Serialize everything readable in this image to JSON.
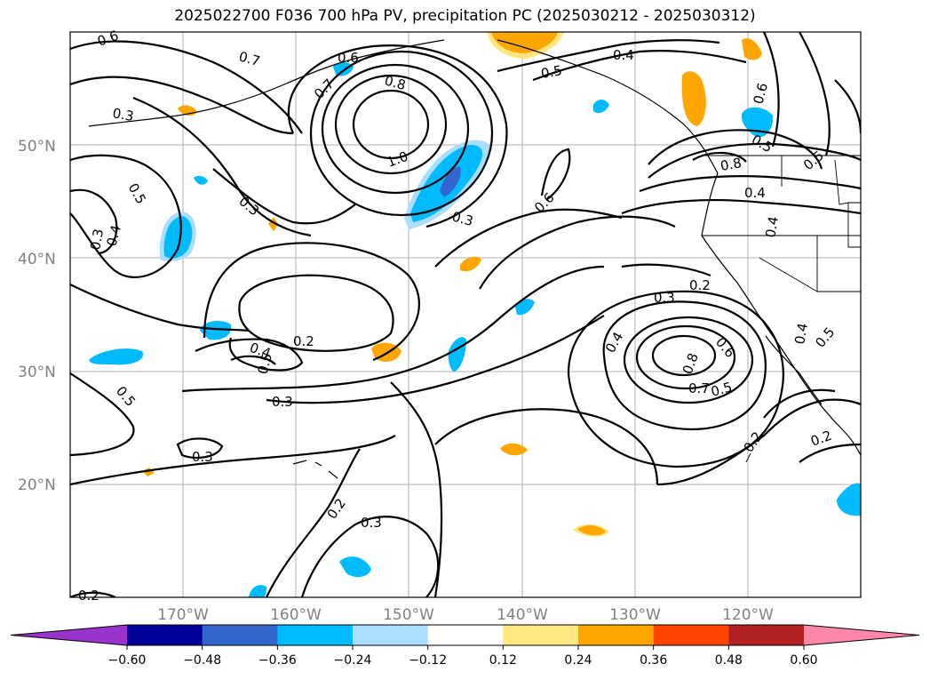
{
  "title": "2025022700 F036 700 hPa PV, precipitation PC (2025030212 - 2025030312)",
  "lat_labels": [
    "50°N",
    "40°N",
    "30°N",
    "20°N"
  ],
  "lon_labels": [
    "170°W",
    "160°W",
    "150°W",
    "140°W",
    "130°W",
    "120°W"
  ],
  "colorbar": {
    "ticks": [
      "−0.60",
      "−0.48",
      "−0.36",
      "−0.24",
      "−0.12",
      "0.12",
      "0.24",
      "0.36",
      "0.48",
      "0.60"
    ],
    "colors": [
      "#9933cc",
      "#000099",
      "#3366cc",
      "#00bbff",
      "#aaddff",
      "#ffffff",
      "#ffe680",
      "#ffa500",
      "#ff4500",
      "#b22222",
      "#ff88aa"
    ]
  },
  "contour_labels": [
    "0.6",
    "0.7",
    "0.6",
    "0.7",
    "0.8",
    "0.5",
    "0.4",
    "0.6",
    "0.3",
    "1.0",
    "0.3",
    "0.5",
    "0.3",
    "0.4",
    "0.3",
    "0.6",
    "0.5",
    "0.8",
    "0.4",
    "0.4",
    "0.5",
    "0.3",
    "0.2",
    "0.4",
    "0.2",
    "0.4",
    "0.5",
    "0.3",
    "0.5",
    "0.6",
    "0.8",
    "0.7",
    "0.5",
    "0.4",
    "0.5",
    "0.3",
    "0.2",
    "0.3",
    "0.2",
    "0.2",
    "0.2"
  ]
}
